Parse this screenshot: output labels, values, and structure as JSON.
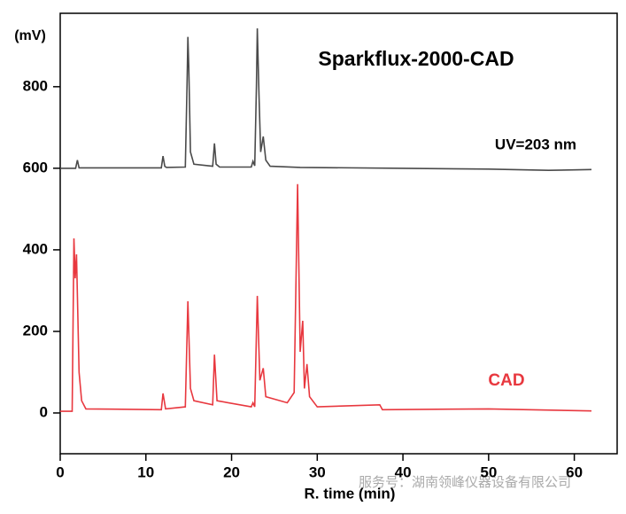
{
  "chart_data": {
    "type": "line",
    "title": "Sparkflux-2000-CAD",
    "y_label": "(mV)",
    "x_label": "R. time (min)",
    "watermark": "服务号：湖南领峰仪器设备有限公司",
    "xlim": [
      0,
      65
    ],
    "xticks": [
      0,
      10,
      20,
      30,
      40,
      50,
      60
    ],
    "ylim": [
      -100,
      980
    ],
    "yticks": [
      0,
      200,
      400,
      600,
      800
    ],
    "series": [
      {
        "name": "UV=203 nm",
        "color": "#4a4a4a",
        "x": [
          0,
          1.8,
          2.0,
          2.2,
          11.8,
          12.0,
          12.2,
          12.4,
          14.6,
          14.8,
          14.9,
          15.0,
          15.2,
          15.6,
          17.8,
          18.0,
          18.2,
          18.6,
          22.3,
          22.5,
          22.7,
          22.9,
          23.0,
          23.2,
          23.4,
          23.7,
          24.0,
          24.5,
          28,
          40,
          50,
          57,
          62
        ],
        "values": [
          600,
          600,
          620,
          601,
          601,
          630,
          605,
          602,
          603,
          800,
          922,
          850,
          640,
          610,
          605,
          661,
          610,
          603,
          603,
          617,
          606,
          800,
          943,
          780,
          640,
          678,
          620,
          605,
          602,
          600,
          598,
          595,
          597
        ]
      },
      {
        "name": "CAD",
        "color": "#e8383f",
        "x": [
          0,
          1.4,
          1.6,
          1.75,
          1.9,
          2.2,
          2.5,
          3.0,
          11.8,
          12.0,
          12.3,
          14.6,
          14.9,
          15.2,
          15.6,
          17.8,
          18.0,
          18.3,
          22.3,
          22.5,
          22.7,
          23.0,
          23.3,
          23.7,
          24.0,
          26.5,
          27.3,
          27.7,
          28.0,
          28.3,
          28.5,
          28.8,
          29.1,
          30,
          37.3,
          37.6,
          50,
          62
        ],
        "values": [
          4,
          4,
          428,
          330,
          389,
          100,
          30,
          10,
          8,
          48,
          10,
          15,
          274,
          60,
          30,
          20,
          143,
          30,
          15,
          25,
          15,
          287,
          80,
          110,
          40,
          25,
          50,
          561,
          150,
          226,
          60,
          120,
          40,
          15,
          20,
          8,
          10,
          5
        ]
      }
    ]
  }
}
